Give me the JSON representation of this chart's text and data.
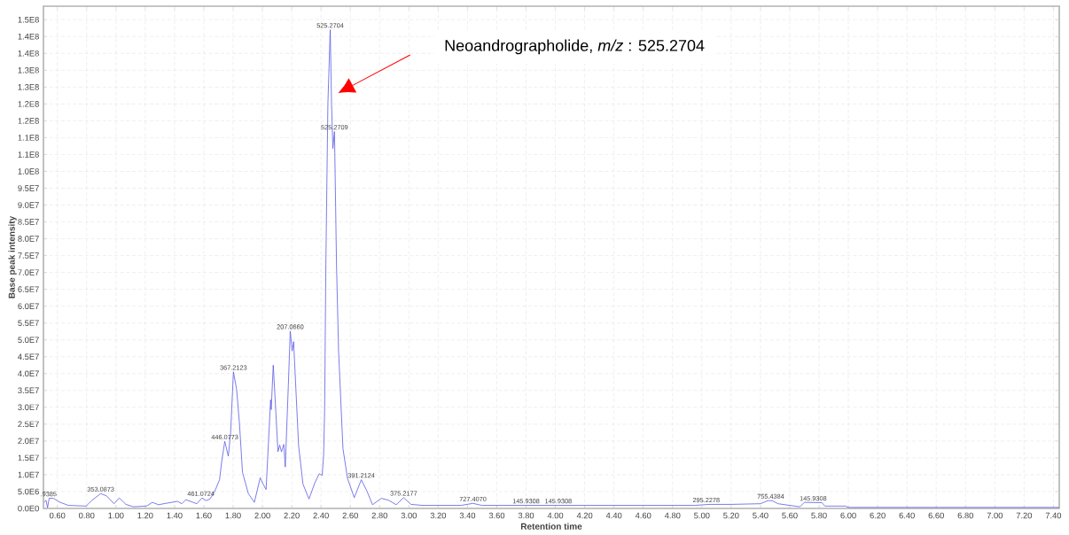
{
  "chart_data": {
    "type": "line",
    "xlabel": "Retention time",
    "ylabel": "Base peak intensity",
    "color": "#5a5ae6",
    "grid": true,
    "xlim": [
      0.505,
      7.44
    ],
    "ylim": [
      0,
      149000000.0
    ],
    "xticks": [
      {
        "value": 0.6,
        "label": "0.60"
      },
      {
        "value": 0.8,
        "label": "0.80"
      },
      {
        "value": 1.0,
        "label": "1.00"
      },
      {
        "value": 1.2,
        "label": "1.20"
      },
      {
        "value": 1.4,
        "label": "1.40"
      },
      {
        "value": 1.6,
        "label": "1.60"
      },
      {
        "value": 1.8,
        "label": "1.80"
      },
      {
        "value": 2.0,
        "label": "2.00"
      },
      {
        "value": 2.2,
        "label": "2.20"
      },
      {
        "value": 2.4,
        "label": "2.40"
      },
      {
        "value": 2.6,
        "label": "2.60"
      },
      {
        "value": 2.8,
        "label": "2.80"
      },
      {
        "value": 3.0,
        "label": "3.00"
      },
      {
        "value": 3.2,
        "label": "3.20"
      },
      {
        "value": 3.4,
        "label": "3.40"
      },
      {
        "value": 3.6,
        "label": "3.60"
      },
      {
        "value": 3.8,
        "label": "3.80"
      },
      {
        "value": 4.0,
        "label": "4.00"
      },
      {
        "value": 4.2,
        "label": "4.20"
      },
      {
        "value": 4.4,
        "label": "4.40"
      },
      {
        "value": 4.6,
        "label": "4.60"
      },
      {
        "value": 4.8,
        "label": "4.80"
      },
      {
        "value": 5.0,
        "label": "5.00"
      },
      {
        "value": 5.2,
        "label": "5.20"
      },
      {
        "value": 5.4,
        "label": "5.40"
      },
      {
        "value": 5.6,
        "label": "5.60"
      },
      {
        "value": 5.8,
        "label": "5.80"
      },
      {
        "value": 6.0,
        "label": "6.00"
      },
      {
        "value": 6.2,
        "label": "6.20"
      },
      {
        "value": 6.4,
        "label": "6.40"
      },
      {
        "value": 6.6,
        "label": "6.60"
      },
      {
        "value": 6.8,
        "label": "6.80"
      },
      {
        "value": 7.0,
        "label": "7.00"
      },
      {
        "value": 7.2,
        "label": "7.20"
      },
      {
        "value": 7.4,
        "label": "7.40"
      }
    ],
    "yticks": [
      {
        "value": 0,
        "label": "0.0E0"
      },
      {
        "value": 5000000,
        "label": "5.0E6"
      },
      {
        "value": 10000000,
        "label": "1.0E7"
      },
      {
        "value": 15000000,
        "label": "1.5E7"
      },
      {
        "value": 20000000,
        "label": "2.0E7"
      },
      {
        "value": 25000000,
        "label": "2.5E7"
      },
      {
        "value": 30000000,
        "label": "3.0E7"
      },
      {
        "value": 35000000,
        "label": "3.5E7"
      },
      {
        "value": 40000000,
        "label": "4.0E7"
      },
      {
        "value": 45000000,
        "label": "4.5E7"
      },
      {
        "value": 50000000,
        "label": "5.0E7"
      },
      {
        "value": 55000000,
        "label": "5.5E7"
      },
      {
        "value": 60000000,
        "label": "6.0E7"
      },
      {
        "value": 65000000,
        "label": "6.5E7"
      },
      {
        "value": 70000000,
        "label": "7.0E7"
      },
      {
        "value": 75000000,
        "label": "7.5E7"
      },
      {
        "value": 80000000,
        "label": "8.0E7"
      },
      {
        "value": 85000000,
        "label": "8.5E7"
      },
      {
        "value": 90000000,
        "label": "9.0E7"
      },
      {
        "value": 95000000,
        "label": "9.5E7"
      },
      {
        "value": 100000000,
        "label": "1.0E8"
      },
      {
        "value": 105000000,
        "label": "1.1E8"
      },
      {
        "value": 110000000,
        "label": "1.1E8"
      },
      {
        "value": 115000000,
        "label": "1.2E8"
      },
      {
        "value": 120000000,
        "label": "1.2E8"
      },
      {
        "value": 125000000,
        "label": "1.3E8"
      },
      {
        "value": 130000000,
        "label": "1.3E8"
      },
      {
        "value": 135000000,
        "label": "1.4E8"
      },
      {
        "value": 140000000,
        "label": "1.4E8"
      },
      {
        "value": 145000000,
        "label": "1.5E8"
      }
    ],
    "x": [
      0.509,
      0.523,
      0.533,
      0.544,
      0.574,
      0.614,
      0.675,
      0.796,
      0.836,
      0.896,
      0.937,
      0.987,
      1.023,
      1.068,
      1.118,
      1.209,
      1.249,
      1.29,
      1.34,
      1.42,
      1.45,
      1.477,
      1.552,
      1.588,
      1.616,
      1.642,
      1.673,
      1.707,
      1.723,
      1.743,
      1.767,
      1.783,
      1.802,
      1.824,
      1.844,
      1.864,
      1.904,
      1.945,
      1.985,
      2.005,
      2.025,
      2.056,
      2.06,
      2.074,
      2.092,
      2.106,
      2.118,
      2.13,
      2.146,
      2.156,
      2.177,
      2.19,
      2.203,
      2.213,
      2.247,
      2.277,
      2.318,
      2.358,
      2.388,
      2.408,
      2.418,
      2.425,
      2.433,
      2.447,
      2.463,
      2.472,
      2.481,
      2.492,
      2.506,
      2.52,
      2.55,
      2.581,
      2.627,
      2.675,
      2.711,
      2.752,
      2.812,
      2.863,
      2.913,
      2.964,
      3.014,
      3.095,
      3.357,
      3.437,
      3.498,
      3.6,
      4.0,
      4.6,
      4.95,
      5.05,
      5.2,
      5.4,
      5.45,
      5.48,
      5.52,
      5.6,
      5.67,
      5.7,
      5.82,
      5.84,
      5.98,
      6.0,
      7.44
    ],
    "values": [
      1900000.0,
      2400000.0,
      200000.0,
      3000000.0,
      3000000.0,
      1900000.0,
      900000.0,
      700000.0,
      2400000.0,
      4400000.0,
      3700000.0,
      1400000.0,
      3100000.0,
      1200000.0,
      500000.0,
      700000.0,
      1800000.0,
      1100000.0,
      1500000.0,
      2100000.0,
      1400000.0,
      2600000.0,
      1400000.0,
      3100000.0,
      2300000.0,
      2800000.0,
      4900000.0,
      8500000.0,
      14200000.0,
      19900000.0,
      15500000.0,
      22500000.0,
      40500000.0,
      35300000.0,
      24700000.0,
      10700000.0,
      4400000.0,
      1800000.0,
      9100000.0,
      7200000.0,
      5600000.0,
      32200000.0,
      29300000.0,
      42500000.0,
      28200000.0,
      16800000.0,
      18800000.0,
      16800000.0,
      19000000.0,
      12300000.0,
      36600000.0,
      52600000.0,
      46700000.0,
      49500000.0,
      18600000.0,
      7200000.0,
      2800000.0,
      7600000.0,
      10300000.0,
      9800000.0,
      16000000.0,
      30000000.0,
      72000000.0,
      120000000.0,
      142000000.0,
      120000000.0,
      106800000.0,
      111800000.0,
      72000000.0,
      46700000.0,
      17700000.0,
      8900000.0,
      3200000.0,
      8500000.0,
      5400000.0,
      1100000.0,
      3000000.0,
      2400000.0,
      1100000.0,
      3200000.0,
      1200000.0,
      900000.0,
      900000.0,
      1500000.0,
      900000.0,
      900000.0,
      900000.0,
      900000.0,
      900000.0,
      1200000.0,
      1200000.0,
      1400000.0,
      2300000.0,
      2300000.0,
      1400000.0,
      900000.0,
      500000.0,
      1800000.0,
      1700000.0,
      700000.0,
      700000.0,
      300000.0,
      300000.0
    ],
    "annotations": [
      "Neoandrographolide, *m/z* : 525.2704",
      {
        "text": ".9385",
        "x": 0.54,
        "y": 3000000.0
      },
      {
        "text": "353.0873",
        "x": 0.896,
        "y": 4400000.0
      },
      {
        "text": "461.0724",
        "x": 1.58,
        "y": 3100000.0
      },
      {
        "text": "446.0773",
        "x": 1.743,
        "y": 19900000.0
      },
      {
        "text": "367.2123",
        "x": 1.802,
        "y": 40500000.0
      },
      {
        "text": "207.0660",
        "x": 2.19,
        "y": 52600000.0
      },
      {
        "text": "525.2704",
        "x": 2.463,
        "y": 142000000.0
      },
      {
        "text": "525.2709",
        "x": 2.492,
        "y": 111800000.0
      },
      {
        "text": "391.2124",
        "x": 2.675,
        "y": 8500000.0
      },
      {
        "text": "375.2177",
        "x": 2.964,
        "y": 3200000.0
      },
      {
        "text": "727.4070",
        "x": 3.437,
        "y": 1500000.0
      },
      {
        "text": "145.9308",
        "x": 3.8,
        "y": 900000.0
      },
      {
        "text": "145.9308",
        "x": 4.02,
        "y": 900000.0
      },
      {
        "text": "295.2278",
        "x": 5.03,
        "y": 1200000.0
      },
      {
        "text": "755.4384",
        "x": 5.47,
        "y": 2300000.0
      },
      {
        "text": "145.9308",
        "x": 5.76,
        "y": 1700000.0
      }
    ]
  }
}
